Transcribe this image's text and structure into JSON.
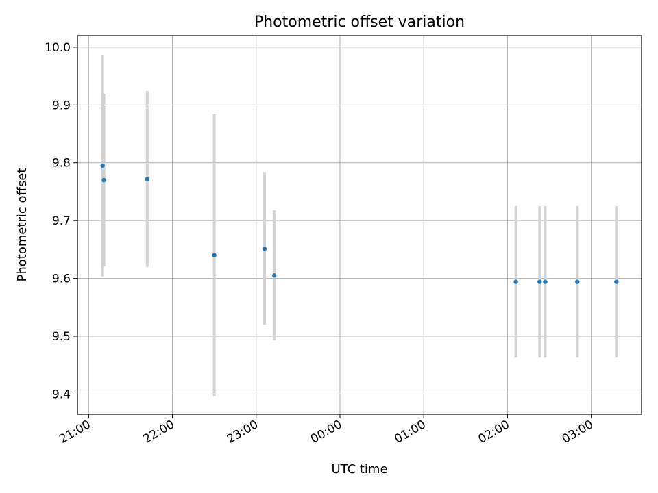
{
  "chart_data": {
    "type": "scatter",
    "title": "Photometric offset variation",
    "xlabel": "UTC time",
    "ylabel": "Photometric offset",
    "x_axis_kind": "time",
    "xlim": [
      "20:52",
      "03:36"
    ],
    "ylim": [
      9.365,
      10.02
    ],
    "x_ticks": [
      "21:00",
      "22:00",
      "23:00",
      "00:00",
      "01:00",
      "02:00",
      "03:00"
    ],
    "y_ticks": [
      "9.4",
      "9.5",
      "9.6",
      "9.7",
      "9.8",
      "9.9",
      "10.0"
    ],
    "grid": true,
    "x_tick_rotation": "30 degrees",
    "point_color": "#1f77b4",
    "errorbar_color": "#d3d3d3",
    "points": [
      {
        "time": "21:10",
        "y": 9.795,
        "y_low": 9.603,
        "y_high": 9.987
      },
      {
        "time": "21:11",
        "y": 9.77,
        "y_low": 9.621,
        "y_high": 9.919
      },
      {
        "time": "21:42",
        "y": 9.772,
        "y_low": 9.62,
        "y_high": 9.924
      },
      {
        "time": "22:30",
        "y": 9.64,
        "y_low": 9.396,
        "y_high": 9.884
      },
      {
        "time": "23:06",
        "y": 9.651,
        "y_low": 9.52,
        "y_high": 9.784
      },
      {
        "time": "23:13",
        "y": 9.605,
        "y_low": 9.493,
        "y_high": 9.718
      },
      {
        "time": "02:06",
        "y": 9.594,
        "y_low": 9.463,
        "y_high": 9.725
      },
      {
        "time": "02:23",
        "y": 9.594,
        "y_low": 9.463,
        "y_high": 9.725
      },
      {
        "time": "02:27",
        "y": 9.594,
        "y_low": 9.463,
        "y_high": 9.725
      },
      {
        "time": "02:50",
        "y": 9.594,
        "y_low": 9.463,
        "y_high": 9.725
      },
      {
        "time": "03:18",
        "y": 9.594,
        "y_low": 9.463,
        "y_high": 9.725
      }
    ]
  }
}
